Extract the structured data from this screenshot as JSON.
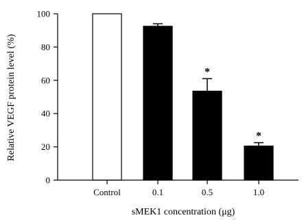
{
  "chart_data": {
    "type": "bar",
    "categories": [
      "Control",
      "0.1",
      "0.5",
      "1.0"
    ],
    "values": [
      100,
      92.5,
      53.5,
      20.5
    ],
    "errors": [
      0,
      1.5,
      7.5,
      2.0
    ],
    "significance": [
      "",
      "",
      "*",
      "*"
    ],
    "fills": [
      "#ffffff",
      "#000000",
      "#000000",
      "#000000"
    ],
    "xlabel": "sMEK1 concentration (μg)",
    "ylabel": "Relative VEGF protein level (%)",
    "ylim": [
      0,
      100
    ],
    "yticks": [
      0,
      20,
      40,
      60,
      80,
      100
    ],
    "grid": false
  }
}
